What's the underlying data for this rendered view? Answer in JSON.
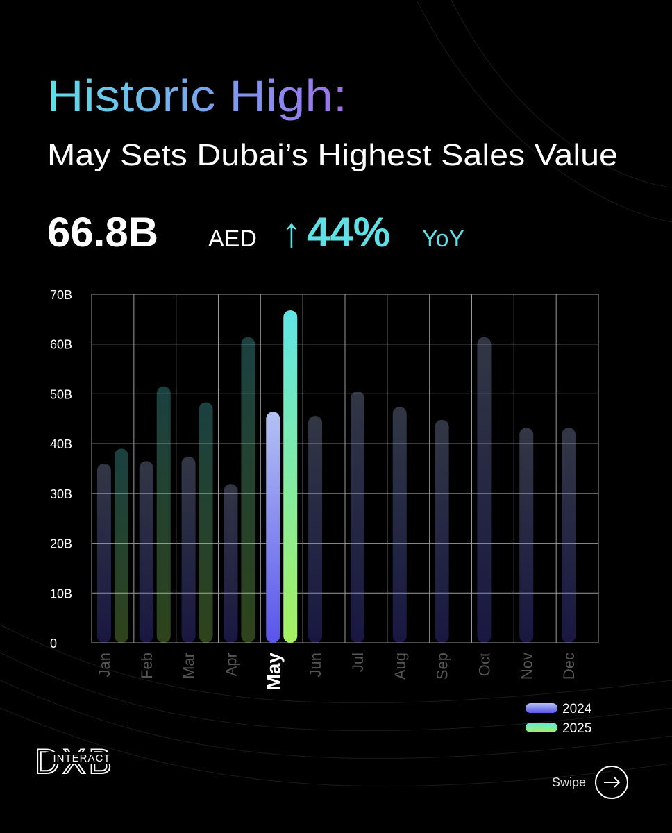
{
  "header": {
    "title": "Historic High:",
    "subtitle": "May Sets Dubai’s Highest Sales Value",
    "figure": "66.8B",
    "unit": "AED",
    "arrow": "↑",
    "change": "44%",
    "change_suffix": "YoY"
  },
  "chart_data": {
    "type": "bar",
    "categories": [
      "Jan",
      "Feb",
      "Mar",
      "Apr",
      "May",
      "Jun",
      "Jul",
      "Aug",
      "Sep",
      "Oct",
      "Nov",
      "Dec"
    ],
    "highlight": "May",
    "series": [
      {
        "name": "2024",
        "color": "#5a54ec",
        "values": [
          36,
          36.5,
          37.4,
          31.9,
          46.4,
          45.6,
          50.5,
          47.4,
          44.8,
          61.4,
          43.2,
          43.2
        ]
      },
      {
        "name": "2025",
        "color": "#a6f060",
        "values": [
          39,
          51.5,
          48.3,
          61.4,
          66.8,
          null,
          null,
          null,
          null,
          null,
          null,
          null
        ]
      }
    ],
    "ylim": [
      0,
      70
    ],
    "yticks": [
      0,
      {
        "value": 10,
        "label": "10B"
      },
      {
        "value": 20,
        "label": "20B"
      },
      {
        "value": 30,
        "label": "30B"
      },
      {
        "value": 40,
        "label": "40B"
      },
      {
        "value": 50,
        "label": "50B"
      },
      {
        "value": 60,
        "label": "60B"
      },
      {
        "value": 70,
        "label": "70B"
      }
    ],
    "grid": true,
    "legend": "lower right"
  },
  "footer": {
    "logo": "DXB",
    "logo_sub": "INTERACT",
    "swipe": "Swipe"
  }
}
